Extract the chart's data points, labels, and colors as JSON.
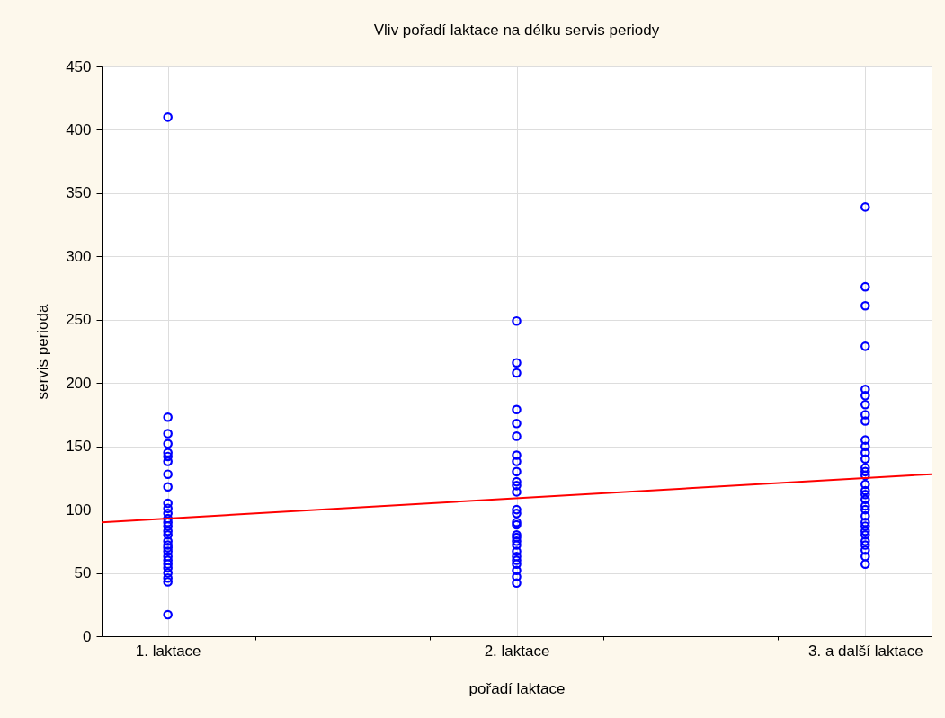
{
  "chart_data": {
    "type": "scatter",
    "title": "Vliv pořadí laktace na délku servis periody",
    "xlabel": "pořadí laktace",
    "ylabel": "servis perioda",
    "xlim": [
      0.81,
      3.19
    ],
    "xticks": [
      {
        "value": 1,
        "label": "1. laktace"
      },
      {
        "value": 1.25,
        "label": null
      },
      {
        "value": 1.5,
        "label": null
      },
      {
        "value": 1.75,
        "label": null
      },
      {
        "value": 2,
        "label": "2. laktace"
      },
      {
        "value": 2.25,
        "label": null
      },
      {
        "value": 2.5,
        "label": null
      },
      {
        "value": 2.75,
        "label": null
      },
      {
        "value": 3,
        "label": "3. a další laktace"
      }
    ],
    "ylim": [
      0,
      450
    ],
    "yticks": [
      0,
      50,
      100,
      150,
      200,
      250,
      300,
      350,
      400,
      450
    ],
    "grid": true,
    "marker": "circle",
    "series": [
      {
        "color": "#0000ff",
        "x": [
          1,
          1,
          1,
          1,
          1,
          1,
          1,
          1,
          1,
          1,
          1,
          1,
          1,
          1,
          1,
          1,
          1,
          1,
          1,
          1,
          1,
          1,
          1,
          1,
          1,
          1,
          1,
          1,
          1,
          2,
          2,
          2,
          2,
          2,
          2,
          2,
          2,
          2,
          2,
          2,
          2,
          2,
          2,
          2,
          2,
          2,
          2,
          2,
          2,
          2,
          2,
          2,
          2,
          2,
          2,
          2,
          3,
          3,
          3,
          3,
          3,
          3,
          3,
          3,
          3,
          3,
          3,
          3,
          3,
          3,
          3,
          3,
          3,
          3,
          3,
          3,
          3,
          3,
          3,
          3,
          3,
          3,
          3,
          3,
          3,
          3,
          3,
          3
        ],
        "values": [
          410,
          173,
          160,
          152,
          145,
          142,
          138,
          128,
          118,
          105,
          101,
          97,
          93,
          90,
          87,
          83,
          80,
          75,
          72,
          70,
          67,
          63,
          60,
          57,
          54,
          50,
          46,
          43,
          17,
          249,
          216,
          208,
          179,
          168,
          158,
          143,
          138,
          130,
          122,
          119,
          114,
          100,
          97,
          90,
          88,
          80,
          78,
          75,
          72,
          67,
          63,
          60,
          57,
          52,
          47,
          42,
          339,
          276,
          261,
          229,
          195,
          190,
          183,
          175,
          170,
          155,
          150,
          145,
          140,
          133,
          130,
          127,
          120,
          115,
          112,
          108,
          103,
          100,
          95,
          90,
          87,
          83,
          80,
          75,
          72,
          68,
          63,
          57
        ]
      },
      {
        "type": "line",
        "color": "#ff0000",
        "marker": "none",
        "line_style": "solid",
        "x": [
          0.81,
          3.19
        ],
        "values": [
          90,
          128
        ]
      }
    ]
  }
}
